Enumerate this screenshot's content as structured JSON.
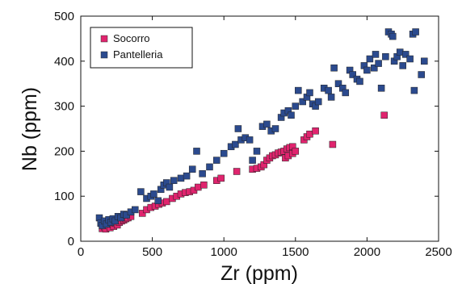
{
  "chart_data": {
    "type": "scatter",
    "title": "",
    "xlabel": "Zr (ppm)",
    "ylabel": "Nb (ppm)",
    "xlim": [
      0,
      2500
    ],
    "ylim": [
      0,
      500
    ],
    "xticks": [
      0,
      500,
      1000,
      1500,
      2000,
      2500
    ],
    "yticks": [
      0,
      100,
      200,
      300,
      400,
      500
    ],
    "legend_position": "top-left",
    "grid": false,
    "series": [
      {
        "name": "Socorro",
        "color": "#e0246e",
        "marker": "square",
        "points": [
          [
            150,
            28
          ],
          [
            165,
            32
          ],
          [
            175,
            27
          ],
          [
            190,
            35
          ],
          [
            205,
            30
          ],
          [
            215,
            38
          ],
          [
            230,
            33
          ],
          [
            240,
            40
          ],
          [
            255,
            36
          ],
          [
            270,
            42
          ],
          [
            285,
            45
          ],
          [
            300,
            47
          ],
          [
            315,
            50
          ],
          [
            330,
            52
          ],
          [
            350,
            55
          ],
          [
            430,
            62
          ],
          [
            460,
            70
          ],
          [
            490,
            75
          ],
          [
            520,
            78
          ],
          [
            545,
            82
          ],
          [
            570,
            85
          ],
          [
            600,
            88
          ],
          [
            640,
            95
          ],
          [
            670,
            100
          ],
          [
            700,
            105
          ],
          [
            730,
            108
          ],
          [
            760,
            110
          ],
          [
            790,
            113
          ],
          [
            820,
            120
          ],
          [
            860,
            125
          ],
          [
            950,
            135
          ],
          [
            980,
            140
          ],
          [
            1090,
            155
          ],
          [
            1200,
            160
          ],
          [
            1230,
            162
          ],
          [
            1260,
            165
          ],
          [
            1280,
            170
          ],
          [
            1300,
            180
          ],
          [
            1320,
            185
          ],
          [
            1340,
            190
          ],
          [
            1360,
            192
          ],
          [
            1380,
            196
          ],
          [
            1400,
            198
          ],
          [
            1420,
            200
          ],
          [
            1440,
            205
          ],
          [
            1460,
            208
          ],
          [
            1480,
            210
          ],
          [
            1430,
            185
          ],
          [
            1450,
            190
          ],
          [
            1480,
            195
          ],
          [
            1500,
            200
          ],
          [
            1560,
            225
          ],
          [
            1580,
            232
          ],
          [
            1600,
            238
          ],
          [
            1640,
            245
          ],
          [
            1760,
            215
          ],
          [
            2120,
            280
          ]
        ]
      },
      {
        "name": "Pantelleria",
        "color": "#2b4a8e",
        "marker": "square",
        "points": [
          [
            130,
            52
          ],
          [
            140,
            40
          ],
          [
            150,
            35
          ],
          [
            165,
            45
          ],
          [
            180,
            38
          ],
          [
            195,
            48
          ],
          [
            210,
            42
          ],
          [
            225,
            50
          ],
          [
            240,
            45
          ],
          [
            260,
            55
          ],
          [
            280,
            52
          ],
          [
            300,
            60
          ],
          [
            320,
            58
          ],
          [
            350,
            65
          ],
          [
            380,
            70
          ],
          [
            420,
            110
          ],
          [
            460,
            95
          ],
          [
            490,
            100
          ],
          [
            510,
            105
          ],
          [
            540,
            90
          ],
          [
            560,
            115
          ],
          [
            580,
            125
          ],
          [
            600,
            130
          ],
          [
            620,
            120
          ],
          [
            650,
            135
          ],
          [
            700,
            140
          ],
          [
            740,
            145
          ],
          [
            780,
            160
          ],
          [
            810,
            200
          ],
          [
            850,
            150
          ],
          [
            900,
            165
          ],
          [
            950,
            180
          ],
          [
            1000,
            195
          ],
          [
            1050,
            210
          ],
          [
            1080,
            215
          ],
          [
            1100,
            250
          ],
          [
            1120,
            225
          ],
          [
            1150,
            230
          ],
          [
            1180,
            225
          ],
          [
            1200,
            180
          ],
          [
            1230,
            200
          ],
          [
            1270,
            255
          ],
          [
            1300,
            260
          ],
          [
            1330,
            245
          ],
          [
            1360,
            250
          ],
          [
            1400,
            275
          ],
          [
            1420,
            285
          ],
          [
            1450,
            290
          ],
          [
            1470,
            280
          ],
          [
            1500,
            300
          ],
          [
            1520,
            335
          ],
          [
            1550,
            310
          ],
          [
            1580,
            320
          ],
          [
            1600,
            330
          ],
          [
            1620,
            305
          ],
          [
            1640,
            300
          ],
          [
            1660,
            310
          ],
          [
            1700,
            340
          ],
          [
            1730,
            335
          ],
          [
            1750,
            320
          ],
          [
            1770,
            385
          ],
          [
            1800,
            350
          ],
          [
            1830,
            340
          ],
          [
            1850,
            330
          ],
          [
            1880,
            380
          ],
          [
            1900,
            370
          ],
          [
            1930,
            360
          ],
          [
            1950,
            355
          ],
          [
            1980,
            390
          ],
          [
            2000,
            380
          ],
          [
            2020,
            405
          ],
          [
            2050,
            385
          ],
          [
            2080,
            395
          ],
          [
            2100,
            340
          ],
          [
            2130,
            410
          ],
          [
            2150,
            465
          ],
          [
            2170,
            460
          ],
          [
            2190,
            400
          ],
          [
            2210,
            410
          ],
          [
            2230,
            420
          ],
          [
            2250,
            390
          ],
          [
            2270,
            415
          ],
          [
            2300,
            405
          ],
          [
            2320,
            460
          ],
          [
            2340,
            465
          ],
          [
            2330,
            335
          ],
          [
            2380,
            370
          ],
          [
            2400,
            400
          ],
          [
            2180,
            455
          ],
          [
            2060,
            415
          ]
        ]
      }
    ]
  }
}
